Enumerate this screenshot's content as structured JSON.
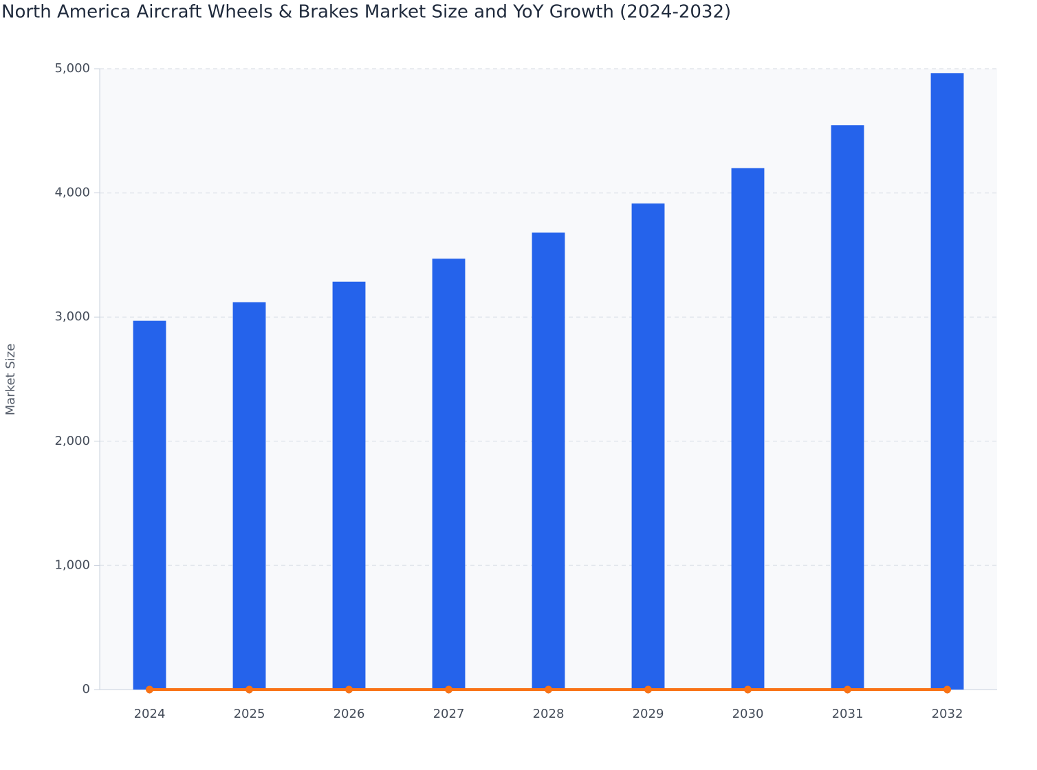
{
  "chart_data": {
    "type": "bar",
    "title": "North America Aircraft Wheels & Brakes Market Size and YoY Growth (2024-2032)",
    "y_label": "Market Size",
    "categories": [
      "2024",
      "2025",
      "2026",
      "2027",
      "2028",
      "2029",
      "2030",
      "2031",
      "2032"
    ],
    "series": [
      {
        "type": "bar",
        "color": "#2563eb",
        "values": [
          2970,
          3120,
          3285,
          3470,
          3680,
          3915,
          4200,
          4545,
          4965
        ]
      },
      {
        "type": "line",
        "color": "#f97316",
        "values": [
          0,
          0,
          0,
          0,
          0,
          0,
          0,
          0,
          0
        ]
      }
    ],
    "ylim": [
      0,
      5000
    ],
    "yticks": [
      0,
      {
        "value": 1000,
        "label": "1,000"
      },
      {
        "value": 2000,
        "label": "2,000"
      },
      {
        "value": 3000,
        "label": "3,000"
      },
      {
        "value": 4000,
        "label": "4,000"
      },
      {
        "value": 5000,
        "label": "5,000"
      }
    ],
    "grid": true
  }
}
